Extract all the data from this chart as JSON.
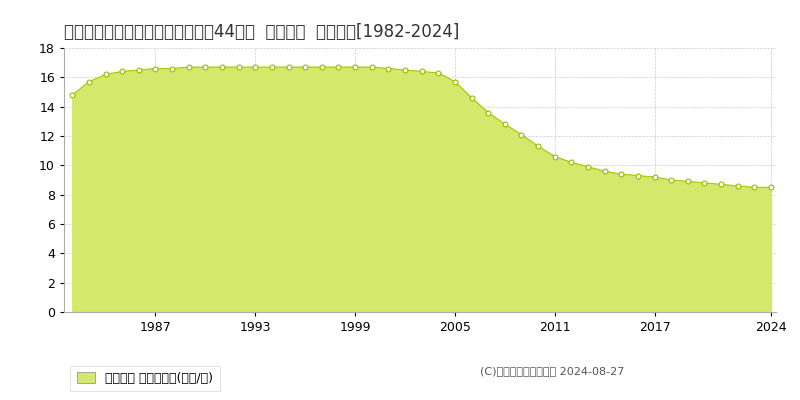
{
  "title": "島根県大田市大田町大田字南代イ44番２  地価公示  地価推移[1982-2024]",
  "years": [
    1982,
    1983,
    1984,
    1985,
    1986,
    1987,
    1988,
    1989,
    1990,
    1991,
    1992,
    1993,
    1994,
    1995,
    1996,
    1997,
    1998,
    1999,
    2000,
    2001,
    2002,
    2003,
    2004,
    2005,
    2006,
    2007,
    2008,
    2009,
    2010,
    2011,
    2012,
    2013,
    2014,
    2015,
    2016,
    2017,
    2018,
    2019,
    2020,
    2021,
    2022,
    2023,
    2024
  ],
  "values": [
    14.8,
    15.7,
    16.2,
    16.4,
    16.5,
    16.6,
    16.6,
    16.7,
    16.7,
    16.7,
    16.7,
    16.7,
    16.7,
    16.7,
    16.7,
    16.7,
    16.7,
    16.7,
    16.7,
    16.6,
    16.5,
    16.4,
    16.3,
    15.7,
    14.6,
    13.6,
    12.8,
    12.1,
    11.3,
    10.6,
    10.2,
    9.9,
    9.6,
    9.4,
    9.3,
    9.2,
    9.0,
    8.9,
    8.8,
    8.7,
    8.6,
    8.5,
    8.5
  ],
  "fill_color": "#d4e96b",
  "line_color": "#a8c800",
  "marker_facecolor": "#ffffff",
  "marker_edgecolor": "#9ab800",
  "background_color": "#ffffff",
  "grid_color": "#cccccc",
  "ylim": [
    0,
    18
  ],
  "yticks": [
    0,
    2,
    4,
    6,
    8,
    10,
    12,
    14,
    16,
    18
  ],
  "xtick_years": [
    1987,
    1993,
    1999,
    2005,
    2011,
    2017,
    2024
  ],
  "legend_label": "地価公示 平均坊単価(万円/坊)",
  "copyright_text": "(C)土地価格ドットコム 2024-08-27",
  "title_fontsize": 12,
  "axis_fontsize": 9,
  "legend_fontsize": 9,
  "fig_width": 8.0,
  "fig_height": 4.0,
  "dpi": 100
}
